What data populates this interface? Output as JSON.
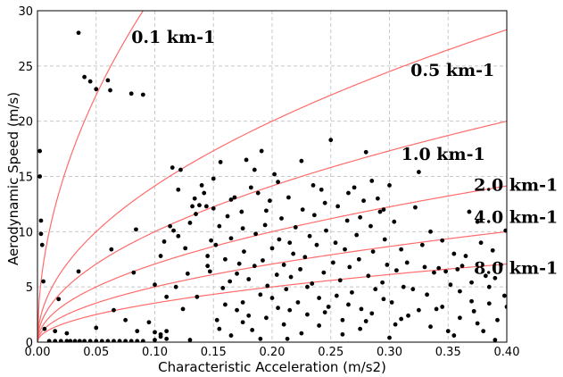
{
  "chart_data": {
    "type": "scatter",
    "title": "",
    "xlabel": "Characteristic Acceleration (m/s2)",
    "ylabel": "Aerodynamic Speed (m/s)",
    "xlim": [
      0,
      0.4
    ],
    "ylim": [
      0,
      30
    ],
    "x_ticks": [
      "0.00",
      "0.05",
      "0.10",
      "0.15",
      "0.20",
      "0.25",
      "0.30",
      "0.35",
      "0.40"
    ],
    "y_ticks": [
      "0",
      "5",
      "10",
      "15",
      "20",
      "25",
      "30"
    ],
    "grid": true,
    "point_color": "#000000",
    "curve_color": "#ff6b6b",
    "curves": [
      {
        "label": "0.1 km-1",
        "k": 0.1,
        "label_at": [
          0.08,
          27.1
        ]
      },
      {
        "label": "0.5 km-1",
        "k": 0.5,
        "label_at": [
          0.318,
          24.1
        ]
      },
      {
        "label": "1.0 km-1",
        "k": 1.0,
        "label_at": [
          0.31,
          16.5
        ]
      },
      {
        "label": "2.0 km-1",
        "k": 2.0,
        "label_at": [
          0.372,
          13.7
        ]
      },
      {
        "label": "4.0 km-1",
        "k": 4.0,
        "label_at": [
          0.372,
          10.8
        ]
      },
      {
        "label": "8.0 km-1",
        "k": 8.0,
        "label_at": [
          0.372,
          6.2
        ]
      }
    ],
    "points": [
      [
        0.035,
        28.0
      ],
      [
        0.04,
        24.0
      ],
      [
        0.045,
        23.6
      ],
      [
        0.05,
        22.9
      ],
      [
        0.06,
        23.7
      ],
      [
        0.062,
        22.8
      ],
      [
        0.08,
        22.5
      ],
      [
        0.09,
        22.4
      ],
      [
        0.002,
        17.3
      ],
      [
        0.002,
        15.0
      ],
      [
        0.003,
        11.0
      ],
      [
        0.003,
        9.8
      ],
      [
        0.004,
        8.8
      ],
      [
        0.005,
        5.5
      ],
      [
        0.018,
        3.9
      ],
      [
        0.035,
        6.4
      ],
      [
        0.006,
        1.2
      ],
      [
        0.01,
        0.1
      ],
      [
        0.015,
        0.1
      ],
      [
        0.02,
        0.1
      ],
      [
        0.025,
        0.1
      ],
      [
        0.028,
        0.1
      ],
      [
        0.032,
        0.1
      ],
      [
        0.036,
        0.1
      ],
      [
        0.04,
        0.1
      ],
      [
        0.045,
        0.1
      ],
      [
        0.05,
        0.1
      ],
      [
        0.055,
        0.1
      ],
      [
        0.06,
        0.1
      ],
      [
        0.065,
        0.1
      ],
      [
        0.07,
        0.1
      ],
      [
        0.075,
        0.1
      ],
      [
        0.08,
        0.1
      ],
      [
        0.085,
        0.1
      ],
      [
        0.09,
        0.1
      ],
      [
        0.1,
        0.2
      ],
      [
        0.105,
        0.5
      ],
      [
        0.11,
        0.3
      ],
      [
        0.13,
        0.2
      ],
      [
        0.015,
        1.0
      ],
      [
        0.025,
        0.8
      ],
      [
        0.05,
        1.3
      ],
      [
        0.065,
        2.9
      ],
      [
        0.075,
        2.0
      ],
      [
        0.085,
        1.0
      ],
      [
        0.095,
        1.8
      ],
      [
        0.1,
        0.9
      ],
      [
        0.105,
        0.7
      ],
      [
        0.11,
        1.0
      ],
      [
        0.063,
        8.4
      ],
      [
        0.082,
        6.3
      ],
      [
        0.084,
        10.2
      ],
      [
        0.1,
        5.2
      ],
      [
        0.105,
        7.8
      ],
      [
        0.108,
        9.1
      ],
      [
        0.11,
        4.1
      ],
      [
        0.113,
        10.5
      ],
      [
        0.115,
        15.8
      ],
      [
        0.116,
        10.1
      ],
      [
        0.118,
        5.0
      ],
      [
        0.12,
        9.6
      ],
      [
        0.122,
        15.6
      ],
      [
        0.124,
        3.0
      ],
      [
        0.126,
        8.5
      ],
      [
        0.128,
        6.2
      ],
      [
        0.13,
        10.8
      ],
      [
        0.132,
        12.3
      ],
      [
        0.134,
        13.0
      ],
      [
        0.136,
        4.1
      ],
      [
        0.138,
        12.4
      ],
      [
        0.14,
        14.2
      ],
      [
        0.142,
        13.5
      ],
      [
        0.144,
        12.3
      ],
      [
        0.145,
        7.8
      ],
      [
        0.147,
        6.4
      ],
      [
        0.148,
        9.2
      ],
      [
        0.15,
        12.1
      ],
      [
        0.152,
        8.8
      ],
      [
        0.153,
        2.0
      ],
      [
        0.155,
        10.5
      ],
      [
        0.156,
        16.3
      ],
      [
        0.158,
        4.9
      ],
      [
        0.16,
        7.5
      ],
      [
        0.162,
        11.4
      ],
      [
        0.164,
        5.5
      ],
      [
        0.165,
        9.4
      ],
      [
        0.168,
        13.1
      ],
      [
        0.17,
        2.9
      ],
      [
        0.172,
        7.1
      ],
      [
        0.174,
        11.8
      ],
      [
        0.175,
        3.6
      ],
      [
        0.176,
        8.2
      ],
      [
        0.178,
        16.5
      ],
      [
        0.18,
        5.7
      ],
      [
        0.182,
        14.0
      ],
      [
        0.183,
        1.1
      ],
      [
        0.185,
        6.9
      ],
      [
        0.186,
        9.8
      ],
      [
        0.188,
        13.5
      ],
      [
        0.19,
        4.3
      ],
      [
        0.191,
        17.3
      ],
      [
        0.192,
        7.4
      ],
      [
        0.194,
        10.6
      ],
      [
        0.195,
        2.2
      ],
      [
        0.196,
        5.1
      ],
      [
        0.198,
        12.8
      ],
      [
        0.2,
        8.5
      ],
      [
        0.202,
        15.2
      ],
      [
        0.204,
        6.1
      ],
      [
        0.205,
        3.1
      ],
      [
        0.206,
        9.3
      ],
      [
        0.208,
        11.2
      ],
      [
        0.21,
        7.0
      ],
      [
        0.212,
        4.8
      ],
      [
        0.213,
        0.3
      ],
      [
        0.214,
        13.1
      ],
      [
        0.216,
        5.9
      ],
      [
        0.218,
        8.0
      ],
      [
        0.22,
        10.4
      ],
      [
        0.222,
        3.6
      ],
      [
        0.224,
        6.6
      ],
      [
        0.225,
        16.4
      ],
      [
        0.226,
        12.0
      ],
      [
        0.228,
        7.7
      ],
      [
        0.23,
        2.5
      ],
      [
        0.232,
        9.6
      ],
      [
        0.234,
        5.3
      ],
      [
        0.236,
        11.5
      ],
      [
        0.238,
        8.8
      ],
      [
        0.24,
        4.0
      ],
      [
        0.242,
        13.8
      ],
      [
        0.244,
        6.3
      ],
      [
        0.246,
        10.1
      ],
      [
        0.248,
        3.2
      ],
      [
        0.25,
        18.3
      ],
      [
        0.252,
        7.2
      ],
      [
        0.254,
        9.0
      ],
      [
        0.256,
        12.3
      ],
      [
        0.258,
        5.6
      ],
      [
        0.26,
        2.0
      ],
      [
        0.262,
        8.4
      ],
      [
        0.264,
        11.0
      ],
      [
        0.266,
        6.8
      ],
      [
        0.268,
        4.5
      ],
      [
        0.27,
        14.0
      ],
      [
        0.272,
        9.7
      ],
      [
        0.274,
        7.5
      ],
      [
        0.276,
        3.0
      ],
      [
        0.278,
        12.8
      ],
      [
        0.28,
        17.2
      ],
      [
        0.282,
        6.0
      ],
      [
        0.284,
        10.5
      ],
      [
        0.286,
        8.2
      ],
      [
        0.288,
        4.8
      ],
      [
        0.29,
        13.0
      ],
      [
        0.292,
        11.8
      ],
      [
        0.294,
        5.4
      ],
      [
        0.296,
        9.3
      ],
      [
        0.298,
        7.0
      ],
      [
        0.3,
        14.2
      ],
      [
        0.302,
        3.6
      ],
      [
        0.304,
        10.9
      ],
      [
        0.306,
        6.5
      ],
      [
        0.31,
        8.4
      ],
      [
        0.312,
        5.0
      ],
      [
        0.316,
        2.4
      ],
      [
        0.32,
        4.8
      ],
      [
        0.322,
        12.2
      ],
      [
        0.325,
        15.4
      ],
      [
        0.328,
        8.8
      ],
      [
        0.33,
        6.8
      ],
      [
        0.332,
        4.3
      ],
      [
        0.335,
        10.0
      ],
      [
        0.338,
        6.3
      ],
      [
        0.34,
        3.0
      ],
      [
        0.342,
        6.7
      ],
      [
        0.345,
        9.2
      ],
      [
        0.348,
        6.4
      ],
      [
        0.35,
        1.0
      ],
      [
        0.352,
        5.2
      ],
      [
        0.355,
        8.0
      ],
      [
        0.358,
        6.6
      ],
      [
        0.36,
        4.6
      ],
      [
        0.362,
        6.9
      ],
      [
        0.365,
        7.8
      ],
      [
        0.368,
        11.8
      ],
      [
        0.37,
        5.4
      ],
      [
        0.372,
        2.8
      ],
      [
        0.375,
        10.9
      ],
      [
        0.378,
        9.0
      ],
      [
        0.38,
        1.0
      ],
      [
        0.382,
        6.0
      ],
      [
        0.385,
        3.5
      ],
      [
        0.388,
        8.3
      ],
      [
        0.39,
        5.8
      ],
      [
        0.392,
        2.0
      ],
      [
        0.395,
        7.0
      ],
      [
        0.398,
        4.2
      ],
      [
        0.399,
        10.1
      ],
      [
        0.4,
        3.2
      ],
      [
        0.155,
        1.2
      ],
      [
        0.165,
        0.6
      ],
      [
        0.175,
        1.8
      ],
      [
        0.19,
        0.3
      ],
      [
        0.21,
        1.6
      ],
      [
        0.225,
        0.8
      ],
      [
        0.24,
        1.5
      ],
      [
        0.26,
        0.7
      ],
      [
        0.28,
        1.9
      ],
      [
        0.3,
        0.4
      ],
      [
        0.31,
        2.1
      ],
      [
        0.335,
        1.4
      ],
      [
        0.355,
        0.6
      ],
      [
        0.375,
        1.7
      ],
      [
        0.39,
        0.2
      ],
      [
        0.145,
        6.9
      ],
      [
        0.16,
        3.4
      ],
      [
        0.17,
        6.2
      ],
      [
        0.18,
        2.4
      ],
      [
        0.2,
        4.0
      ],
      [
        0.215,
        2.9
      ],
      [
        0.23,
        5.0
      ],
      [
        0.245,
        2.7
      ],
      [
        0.255,
        4.2
      ],
      [
        0.265,
        3.4
      ],
      [
        0.275,
        1.2
      ],
      [
        0.285,
        2.6
      ],
      [
        0.295,
        3.9
      ],
      [
        0.305,
        1.6
      ],
      [
        0.315,
        7.2
      ],
      [
        0.325,
        2.9
      ],
      [
        0.345,
        3.2
      ],
      [
        0.36,
        2.2
      ],
      [
        0.37,
        3.7
      ],
      [
        0.385,
        5.0
      ],
      [
        0.12,
        13.8
      ],
      [
        0.135,
        11.6
      ],
      [
        0.15,
        14.8
      ],
      [
        0.165,
        12.9
      ],
      [
        0.175,
        10.3
      ],
      [
        0.185,
        15.6
      ],
      [
        0.195,
        11.9
      ],
      [
        0.205,
        14.5
      ],
      [
        0.215,
        9.0
      ],
      [
        0.235,
        14.2
      ],
      [
        0.245,
        12.6
      ],
      [
        0.265,
        13.5
      ],
      [
        0.275,
        11.3
      ],
      [
        0.285,
        14.6
      ],
      [
        0.295,
        12.0
      ]
    ]
  }
}
